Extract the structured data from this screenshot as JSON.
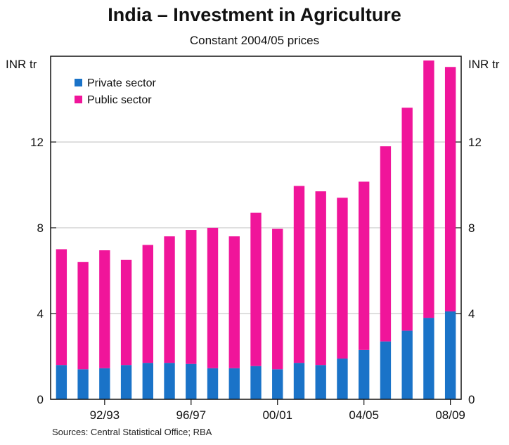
{
  "chart_data": {
    "type": "bar",
    "stacked": true,
    "title": "India – Investment in Agriculture",
    "subtitle": "Constant 2004/05 prices",
    "ylabel_left": "INR tr",
    "ylabel_right": "INR tr",
    "ylim": [
      0,
      16
    ],
    "yticks": [
      0,
      4,
      8,
      12
    ],
    "xtick_labels": [
      "92/93",
      "96/97",
      "00/01",
      "04/05",
      "08/09"
    ],
    "xtick_index": [
      2,
      6,
      10,
      14,
      18
    ],
    "grid": true,
    "legend_position": "top-left",
    "categories": [
      "90/91",
      "91/92",
      "92/93",
      "93/94",
      "94/95",
      "95/96",
      "96/97",
      "97/98",
      "98/99",
      "99/00",
      "00/01",
      "01/02",
      "02/03",
      "03/04",
      "04/05",
      "05/06",
      "06/07",
      "07/08",
      "08/09"
    ],
    "series": [
      {
        "name": "Private sector",
        "color": "#1a73c8",
        "values": [
          1.6,
          1.4,
          1.45,
          1.6,
          1.7,
          1.7,
          1.65,
          1.45,
          1.45,
          1.55,
          1.4,
          1.7,
          1.6,
          1.9,
          2.3,
          2.7,
          3.2,
          3.8,
          4.1
        ]
      },
      {
        "name": "Public sector",
        "color": "#f0159a",
        "values": [
          5.4,
          5.0,
          5.5,
          4.9,
          5.5,
          5.9,
          6.25,
          6.55,
          6.15,
          7.15,
          6.55,
          8.25,
          8.1,
          7.5,
          7.85,
          9.1,
          10.4,
          12.0,
          11.4
        ]
      }
    ]
  },
  "source": "Sources: Central Statistical Office; RBA"
}
